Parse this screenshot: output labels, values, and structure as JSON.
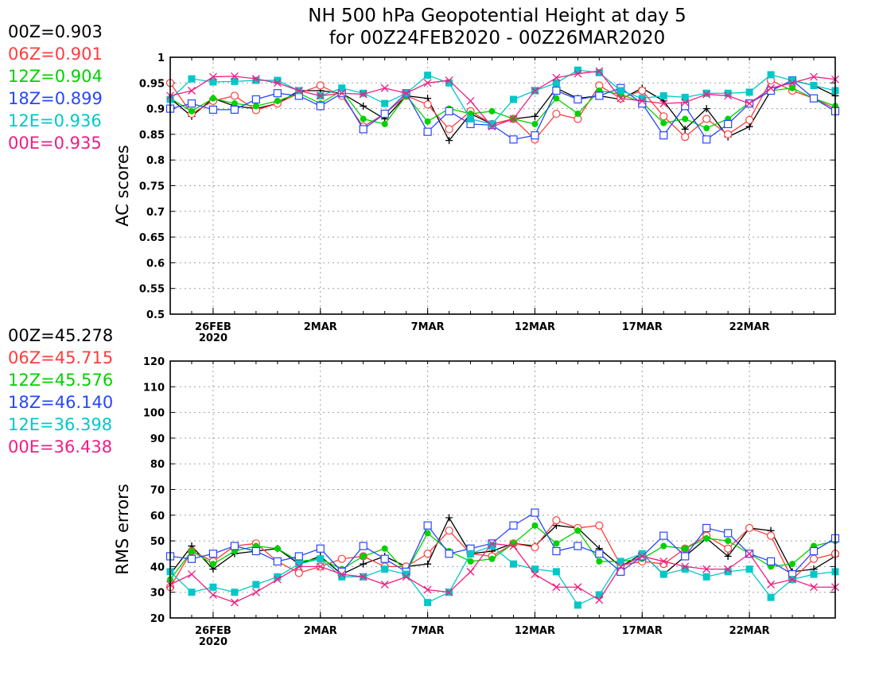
{
  "title_line1": "NH 500 hPa Geopotential Height at day 5",
  "title_line2": "for 00Z24FEB2020 - 00Z26MAR2020",
  "chart_data": [
    {
      "type": "line",
      "ylabel": "AC scores",
      "ylim": [
        0.5,
        1
      ],
      "yticks": [
        "0.5",
        "0.55",
        "0.6",
        "0.65",
        "0.7",
        "0.75",
        "0.8",
        "0.85",
        "0.9",
        "0.95",
        "1"
      ],
      "xlim": [
        0,
        31
      ],
      "xticks": [
        {
          "x": 2,
          "label": "26FEB",
          "label2": "2020"
        },
        {
          "x": 7,
          "label": "2MAR",
          "label2": ""
        },
        {
          "x": 12,
          "label": "7MAR",
          "label2": ""
        },
        {
          "x": 17,
          "label": "12MAR",
          "label2": ""
        },
        {
          "x": 22,
          "label": "17MAR",
          "label2": ""
        },
        {
          "x": 27,
          "label": "22MAR",
          "label2": ""
        }
      ],
      "grid": true,
      "legend_placement": "left",
      "series": [
        {
          "name": "00Z",
          "mean": "0.903",
          "color": "#000000",
          "marker": "plus",
          "values": [
            0.92,
            0.885,
            0.92,
            0.905,
            0.9,
            0.91,
            0.935,
            0.935,
            0.93,
            0.905,
            0.88,
            0.925,
            0.92,
            0.838,
            0.89,
            0.87,
            0.88,
            0.885,
            0.94,
            0.92,
            0.925,
            0.918,
            0.94,
            0.915,
            0.86,
            0.9,
            0.845,
            0.865,
            0.935,
            0.955,
            0.945,
            0.925
          ]
        },
        {
          "name": "06Z",
          "mean": "0.901",
          "color": "#ff3c3c",
          "marker": "circle",
          "values": [
            0.95,
            0.89,
            0.915,
            0.925,
            0.897,
            0.91,
            0.93,
            0.945,
            0.925,
            0.865,
            0.89,
            0.925,
            0.908,
            0.86,
            0.895,
            0.87,
            0.88,
            0.84,
            0.89,
            0.88,
            0.945,
            0.92,
            0.935,
            0.885,
            0.845,
            0.88,
            0.85,
            0.878,
            0.955,
            0.935,
            0.92,
            0.9
          ]
        },
        {
          "name": "12Z",
          "mean": "0.904",
          "color": "#00d200",
          "marker": "dot",
          "values": [
            0.92,
            0.895,
            0.92,
            0.91,
            0.905,
            0.915,
            0.93,
            0.91,
            0.935,
            0.88,
            0.87,
            0.925,
            0.875,
            0.9,
            0.89,
            0.895,
            0.88,
            0.87,
            0.92,
            0.89,
            0.935,
            0.928,
            0.912,
            0.872,
            0.88,
            0.862,
            0.88,
            0.912,
            0.935,
            0.94,
            0.92,
            0.905
          ]
        },
        {
          "name": "18Z",
          "mean": "0.899",
          "color": "#2846ff",
          "marker": "square",
          "values": [
            0.9,
            0.91,
            0.898,
            0.898,
            0.918,
            0.93,
            0.925,
            0.905,
            0.93,
            0.86,
            0.89,
            0.93,
            0.855,
            0.895,
            0.87,
            0.868,
            0.84,
            0.848,
            0.935,
            0.918,
            0.925,
            0.94,
            0.91,
            0.848,
            0.905,
            0.84,
            0.87,
            0.91,
            0.935,
            0.955,
            0.92,
            0.895
          ]
        },
        {
          "name": "12E",
          "mean": "0.936",
          "color": "#00c8c8",
          "marker": "filled-square",
          "values": [
            0.918,
            0.958,
            0.952,
            0.953,
            0.955,
            0.955,
            0.935,
            0.925,
            0.94,
            0.93,
            0.91,
            0.93,
            0.965,
            0.95,
            0.88,
            0.87,
            0.918,
            0.935,
            0.95,
            0.975,
            0.97,
            0.935,
            0.92,
            0.925,
            0.922,
            0.93,
            0.93,
            0.932,
            0.966,
            0.955,
            0.945,
            0.935
          ]
        },
        {
          "name": "00E",
          "mean": "0.935",
          "color": "#f01e82",
          "marker": "x",
          "values": [
            0.925,
            0.935,
            0.962,
            0.963,
            0.958,
            0.95,
            0.935,
            0.925,
            0.93,
            0.928,
            0.94,
            0.93,
            0.95,
            0.955,
            0.915,
            0.865,
            0.88,
            0.935,
            0.96,
            0.968,
            0.973,
            0.92,
            0.915,
            0.91,
            0.912,
            0.928,
            0.925,
            0.91,
            0.94,
            0.95,
            0.962,
            0.957
          ]
        }
      ]
    },
    {
      "type": "line",
      "ylabel": "RMS errors",
      "ylim": [
        20,
        120
      ],
      "yticks": [
        "20",
        "30",
        "40",
        "50",
        "60",
        "70",
        "80",
        "90",
        "100",
        "110",
        "120"
      ],
      "xlim": [
        0,
        31
      ],
      "xticks": [
        {
          "x": 2,
          "label": "26FEB",
          "label2": "2020"
        },
        {
          "x": 7,
          "label": "2MAR",
          "label2": ""
        },
        {
          "x": 12,
          "label": "7MAR",
          "label2": ""
        },
        {
          "x": 17,
          "label": "12MAR",
          "label2": ""
        },
        {
          "x": 22,
          "label": "17MAR",
          "label2": ""
        },
        {
          "x": 27,
          "label": "22MAR",
          "label2": ""
        }
      ],
      "grid": true,
      "legend_placement": "left",
      "series": [
        {
          "name": "00Z",
          "mean": "45.278",
          "color": "#000000",
          "marker": "plus",
          "values": [
            37,
            48,
            39,
            45,
            46,
            47,
            41,
            44,
            37,
            41,
            44,
            40,
            41,
            59,
            45,
            46,
            49,
            48,
            56,
            55,
            47,
            40,
            45,
            37,
            44,
            51,
            44,
            55,
            54,
            38,
            39,
            44
          ]
        },
        {
          "name": "06Z",
          "mean": "45.715",
          "color": "#ff3c3c",
          "marker": "circle",
          "values": [
            32,
            46,
            42,
            48,
            49,
            42,
            37.5,
            40,
            43,
            44,
            40,
            40,
            45,
            54,
            45,
            44,
            49,
            47.5,
            58,
            55,
            56,
            40.5,
            42,
            41,
            47,
            52,
            47,
            55,
            52,
            35,
            43,
            45
          ]
        },
        {
          "name": "12Z",
          "mean": "45.576",
          "color": "#00d200",
          "marker": "dot",
          "values": [
            35,
            46,
            41,
            46,
            48,
            47,
            42,
            43,
            39,
            44,
            47,
            38,
            53,
            46,
            42,
            43,
            49,
            56,
            49,
            54,
            42,
            42,
            43,
            48,
            47,
            51,
            50,
            45,
            40,
            41,
            48,
            50
          ]
        },
        {
          "name": "18Z",
          "mean": "46.140",
          "color": "#2846ff",
          "marker": "square",
          "values": [
            44,
            43,
            45,
            48,
            46,
            42,
            44,
            47,
            38,
            48,
            43,
            38,
            56,
            45,
            47,
            49,
            56,
            61,
            46,
            48,
            45,
            38,
            44,
            52,
            44,
            55,
            53,
            45,
            42,
            37,
            46,
            51
          ]
        },
        {
          "name": "12E",
          "mean": "36.398",
          "color": "#00c8c8",
          "marker": "filled-square",
          "values": [
            38,
            30,
            32,
            30,
            33,
            36,
            41,
            43,
            36,
            36,
            39,
            37,
            26,
            30,
            45,
            48,
            41,
            39,
            38,
            25,
            29,
            42,
            45,
            37,
            39,
            36,
            38,
            39,
            28,
            35,
            37,
            38
          ]
        },
        {
          "name": "00E",
          "mean": "36.438",
          "color": "#f01e82",
          "marker": "x",
          "values": [
            33,
            37,
            29,
            26,
            30,
            35,
            40,
            40,
            37,
            36,
            33,
            36,
            31,
            30,
            38,
            49,
            48,
            37,
            32,
            32,
            27,
            40,
            44,
            42,
            40,
            39,
            39,
            45,
            33,
            35,
            32,
            32
          ]
        }
      ]
    }
  ]
}
